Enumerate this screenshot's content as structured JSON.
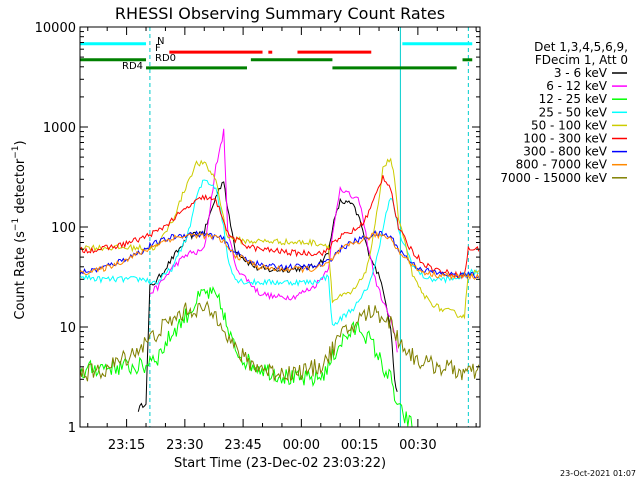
{
  "chart_data": {
    "type": "line",
    "title": "RHESSI Observing Summary Count Rates",
    "xlabel": "Start Time (23-Dec-02 23:03:22)",
    "ylabel": "Count Rate (s⁻¹ detector⁻¹)",
    "ylabel_parts": {
      "a": "Count Rate (s",
      "sup1": "−1",
      "b": " detector",
      "sup2": "−1",
      "c": ")"
    },
    "yscale": "log",
    "ylim": [
      1,
      10000
    ],
    "xlim_min": [
      0,
      103
    ],
    "y_ticks": [
      "1",
      "10",
      "100",
      "1000",
      "10000"
    ],
    "x_ticks": [
      {
        "label": "23:15",
        "min": 12
      },
      {
        "label": "23:30",
        "min": 27
      },
      {
        "label": "23:45",
        "min": 42
      },
      {
        "label": "00:00",
        "min": 57
      },
      {
        "label": "00:15",
        "min": 72
      },
      {
        "label": "00:30",
        "min": 87
      }
    ],
    "legend_header": [
      "Det 1,3,4,5,6,9,",
      "FDecim 1, Att 0"
    ],
    "timestamp": "23-Oct-2021 01:07",
    "flags": [
      {
        "label": "N",
        "color": "#00ffff",
        "level": 6800,
        "segments": [
          [
            0,
            17
          ],
          [
            83,
            101
          ]
        ]
      },
      {
        "label": "F",
        "color": "#ff0000",
        "level": 5600,
        "segments": [
          [
            23,
            47
          ],
          [
            48.5,
            49.5
          ],
          [
            56,
            75
          ]
        ]
      },
      {
        "label": "RD0",
        "color": "#008000",
        "level": 4700,
        "segments": [
          [
            0,
            17
          ],
          [
            44,
            65
          ],
          [
            98.5,
            101
          ]
        ]
      },
      {
        "label": "RD4",
        "color": "#008000",
        "level": 3900,
        "segments": [
          [
            17,
            43
          ],
          [
            65,
            97
          ]
        ]
      }
    ],
    "markers": [
      {
        "kind": "dashed",
        "min": 18,
        "color": "#00cccc"
      },
      {
        "kind": "solid",
        "min": 82.5,
        "color": "#00cccc"
      },
      {
        "kind": "dashed",
        "min": 100,
        "color": "#00cccc"
      },
      {
        "kind": "solid",
        "min": 0,
        "color": "#00cccc"
      }
    ],
    "x_min": [
      0,
      5,
      10,
      15,
      17,
      18,
      20,
      24,
      28,
      30,
      32,
      35,
      37,
      38,
      40,
      43,
      46,
      50,
      55,
      60,
      62,
      64,
      65,
      67,
      70,
      72,
      74,
      76,
      78,
      80,
      81,
      82,
      84,
      86,
      88,
      90,
      93,
      96,
      98,
      99,
      100,
      102,
      103
    ],
    "series": [
      {
        "name": "3 - 6 keV",
        "color": "#000000",
        "values": [
          null,
          null,
          null,
          1.5,
          1.8,
          25,
          30,
          50,
          80,
          85,
          90,
          200,
          300,
          150,
          60,
          45,
          38,
          37,
          38,
          40,
          45,
          55,
          100,
          180,
          170,
          120,
          60,
          40,
          25,
          10,
          3,
          1.8,
          null,
          null,
          null,
          null,
          null,
          null,
          null,
          null,
          null,
          null,
          null
        ]
      },
      {
        "name": "6 - 12 keV",
        "color": "#ff00ff",
        "values": [
          null,
          null,
          null,
          null,
          null,
          22,
          25,
          40,
          55,
          55,
          60,
          400,
          900,
          100,
          40,
          30,
          22,
          20,
          20,
          25,
          30,
          40,
          80,
          250,
          200,
          180,
          70,
          30,
          18,
          12,
          8,
          5,
          null,
          null,
          null,
          null,
          null,
          null,
          null,
          null,
          null,
          null,
          null
        ]
      },
      {
        "name": "12 - 25 keV",
        "color": "#00ff00",
        "values": [
          3.5,
          4,
          4,
          4,
          4,
          5,
          5,
          9,
          14,
          18,
          22,
          20,
          14,
          9,
          6,
          4.5,
          4,
          3.5,
          3,
          3,
          3.2,
          4,
          5,
          7,
          9,
          10,
          8,
          6,
          4,
          3,
          2,
          1.5,
          1.2,
          1,
          null,
          null,
          null,
          null,
          null,
          null,
          null,
          null,
          null
        ]
      },
      {
        "name": "25 - 50 keV",
        "color": "#00ffff",
        "values": [
          32,
          30,
          30,
          30,
          30,
          28,
          28,
          40,
          90,
          200,
          300,
          250,
          100,
          50,
          30,
          28,
          28,
          28,
          28,
          28,
          30,
          32,
          10,
          12,
          15,
          18,
          25,
          40,
          100,
          200,
          150,
          90,
          60,
          40,
          33,
          30,
          30,
          30,
          32,
          33,
          35,
          35,
          35
        ]
      },
      {
        "name": "50 - 100 keV",
        "color": "#cccc00",
        "values": [
          63,
          62,
          62,
          62,
          62,
          60,
          65,
          120,
          300,
          430,
          430,
          300,
          120,
          80,
          75,
          72,
          72,
          72,
          70,
          70,
          68,
          65,
          18,
          20,
          22,
          28,
          40,
          100,
          400,
          480,
          300,
          120,
          60,
          30,
          22,
          18,
          15,
          14,
          13,
          13,
          35,
          35,
          35
        ]
      },
      {
        "name": "100 - 300 keV",
        "color": "#ff0000",
        "values": [
          58,
          60,
          65,
          75,
          80,
          85,
          90,
          120,
          160,
          180,
          200,
          180,
          120,
          85,
          75,
          65,
          60,
          58,
          55,
          55,
          55,
          58,
          70,
          80,
          90,
          100,
          130,
          200,
          320,
          250,
          150,
          100,
          70,
          55,
          45,
          40,
          36,
          34,
          33,
          33,
          60,
          60,
          60
        ]
      },
      {
        "name": "300 - 800 keV",
        "color": "#0000ff",
        "values": [
          35,
          38,
          45,
          55,
          60,
          65,
          70,
          80,
          85,
          85,
          85,
          80,
          75,
          65,
          55,
          48,
          42,
          40,
          40,
          40,
          42,
          45,
          50,
          60,
          70,
          75,
          80,
          85,
          85,
          80,
          70,
          60,
          50,
          42,
          38,
          36,
          34,
          33,
          33,
          33,
          33,
          33,
          33
        ]
      },
      {
        "name": "800 - 7000 keV",
        "color": "#ff8800",
        "values": [
          35,
          37,
          44,
          54,
          58,
          62,
          68,
          78,
          82,
          83,
          82,
          78,
          72,
          62,
          52,
          46,
          40,
          38,
          38,
          38,
          40,
          43,
          48,
          58,
          68,
          72,
          78,
          83,
          82,
          78,
          68,
          58,
          48,
          40,
          36,
          34,
          33,
          32,
          32,
          32,
          32,
          32,
          32
        ]
      },
      {
        "name": "7000 - 15000 keV",
        "color": "#808000",
        "values": [
          3.5,
          3.5,
          4.5,
          6,
          7,
          7.5,
          9,
          12,
          15,
          15,
          15,
          13,
          11,
          8,
          6,
          4.5,
          4,
          3.5,
          3.5,
          3.8,
          4.2,
          5,
          6,
          8,
          10,
          12,
          14,
          14,
          13,
          11,
          9,
          7.5,
          6,
          5,
          4.5,
          4.2,
          4,
          3.8,
          3.5,
          3.5,
          3.5,
          3.5,
          3.5
        ]
      }
    ]
  }
}
